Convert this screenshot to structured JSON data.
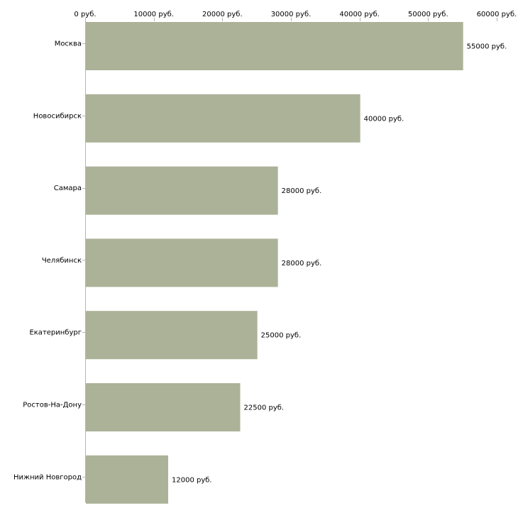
{
  "colors": {
    "bar": "#acb298",
    "axis": "#b4b4b4",
    "text": "#000000"
  },
  "chart_data": {
    "type": "bar",
    "orientation": "horizontal",
    "title": "",
    "xlabel": "",
    "ylabel": "",
    "xlim": [
      0,
      60000
    ],
    "tick_step": 10000,
    "x_axis_position": "top",
    "grid": false,
    "value_suffix": " руб.",
    "ticks": [
      "0 руб.",
      "10000 руб.",
      "20000 руб.",
      "30000 руб.",
      "40000 руб.",
      "50000 руб.",
      "60000 руб."
    ],
    "categories": [
      "Москва",
      "Новосибирск",
      "Самара",
      "Челябинск",
      "Екатеринбург",
      "Ростов-На-Дону",
      "Нижний Новгород"
    ],
    "values": [
      55000,
      40000,
      28000,
      28000,
      25000,
      22500,
      12000
    ],
    "value_labels": [
      "55000 руб.",
      "40000 руб.",
      "28000 руб.",
      "28000 руб.",
      "25000 руб.",
      "22500 руб.",
      "12000 руб."
    ]
  }
}
